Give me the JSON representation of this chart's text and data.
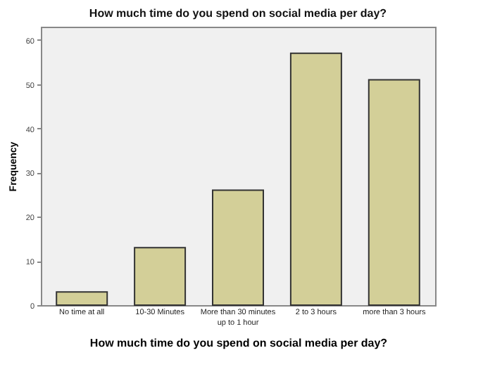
{
  "chart_data": {
    "type": "bar",
    "title": "How much time do you spend on social media per day?",
    "xlabel": "How much time do you spend on social media per day?",
    "ylabel": "Frequency",
    "categories": [
      "No time at all",
      "10-30 Minutes",
      "More than 30 minutes up to 1 hour",
      "2 to 3 hours",
      "more than 3 hours"
    ],
    "values": [
      3,
      13,
      26,
      57,
      51
    ],
    "color": "#d3cf98",
    "ylim": [
      0,
      63
    ],
    "yticks": [
      0,
      10,
      20,
      30,
      40,
      50,
      60
    ],
    "grid": false
  }
}
